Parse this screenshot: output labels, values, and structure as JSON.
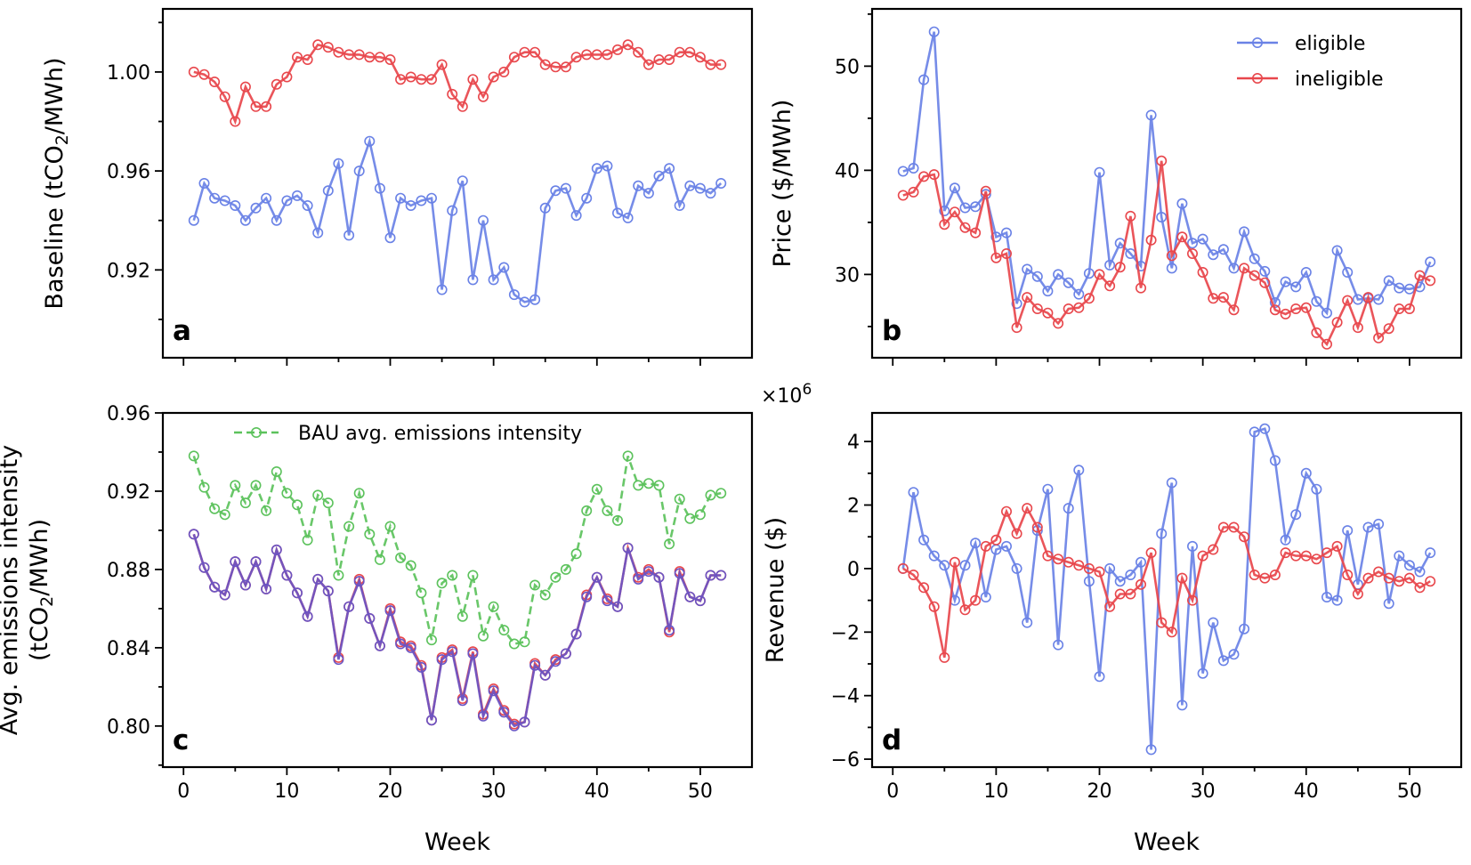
{
  "series_legend": [
    {
      "label": "eligible",
      "color": "#6a82e6"
    },
    {
      "label": "ineligible",
      "color": "#e8474c"
    }
  ],
  "xlabel": "Week",
  "chart_data": [
    {
      "id": "a",
      "letter": "a",
      "type": "line",
      "ylabel_lines": [
        [
          "Baseline (tCO",
          "2",
          "/MWh)"
        ]
      ],
      "xlim": [
        -2,
        55
      ],
      "ylim": [
        0.8845,
        1.0255
      ],
      "yticks": [
        0.92,
        0.96,
        1.0
      ],
      "ytick_labels": [
        "0.92",
        "0.96",
        "1.00"
      ],
      "yminor": [
        0.9,
        0.94,
        0.98,
        1.02
      ],
      "xticks": [
        0,
        10,
        20,
        30,
        40,
        50
      ],
      "xminor": [
        5,
        15,
        25,
        35,
        45
      ],
      "show_xtick_labels": false,
      "x": [
        1,
        2,
        3,
        4,
        5,
        6,
        7,
        8,
        9,
        10,
        11,
        12,
        13,
        14,
        15,
        16,
        17,
        18,
        19,
        20,
        21,
        22,
        23,
        24,
        25,
        26,
        27,
        28,
        29,
        30,
        31,
        32,
        33,
        34,
        35,
        36,
        37,
        38,
        39,
        40,
        41,
        42,
        43,
        44,
        45,
        46,
        47,
        48,
        49,
        50,
        51,
        52
      ],
      "series": [
        {
          "color": "#6a82e6",
          "dashed": false,
          "values": [
            0.94,
            0.955,
            0.949,
            0.948,
            0.946,
            0.94,
            0.945,
            0.949,
            0.94,
            0.948,
            0.95,
            0.946,
            0.935,
            0.952,
            0.963,
            0.934,
            0.96,
            0.972,
            0.953,
            0.933,
            0.949,
            0.946,
            0.948,
            0.949,
            0.912,
            0.944,
            0.956,
            0.916,
            0.94,
            0.916,
            0.921,
            0.91,
            0.907,
            0.908,
            0.945,
            0.952,
            0.953,
            0.942,
            0.949,
            0.961,
            0.962,
            0.943,
            0.941,
            0.954,
            0.951,
            0.958,
            0.961,
            0.946,
            0.954,
            0.953,
            0.951,
            0.955
          ]
        },
        {
          "color": "#e8474c",
          "dashed": false,
          "values": [
            1.0,
            0.999,
            0.996,
            0.99,
            0.98,
            0.994,
            0.986,
            0.986,
            0.995,
            0.998,
            1.006,
            1.005,
            1.011,
            1.01,
            1.008,
            1.007,
            1.007,
            1.006,
            1.006,
            1.005,
            0.997,
            0.998,
            0.997,
            0.997,
            1.003,
            0.991,
            0.986,
            0.997,
            0.99,
            0.998,
            1.0,
            1.006,
            1.008,
            1.008,
            1.003,
            1.002,
            1.002,
            1.006,
            1.007,
            1.007,
            1.007,
            1.009,
            1.011,
            1.008,
            1.003,
            1.005,
            1.005,
            1.008,
            1.008,
            1.006,
            1.003,
            1.003
          ]
        }
      ]
    },
    {
      "id": "b",
      "letter": "b",
      "type": "line",
      "ylabel_lines": [
        [
          "Price ($/MWh)"
        ]
      ],
      "xlim": [
        -2,
        55
      ],
      "ylim": [
        22.0,
        55.5
      ],
      "yticks": [
        30,
        40,
        50
      ],
      "ytick_labels": [
        "30",
        "40",
        "50"
      ],
      "yminor": [
        25,
        35,
        45,
        55
      ],
      "xticks": [
        0,
        10,
        20,
        30,
        40,
        50
      ],
      "xminor": [
        5,
        15,
        25,
        35,
        45
      ],
      "show_xtick_labels": false,
      "legend": true,
      "x": [
        1,
        2,
        3,
        4,
        5,
        6,
        7,
        8,
        9,
        10,
        11,
        12,
        13,
        14,
        15,
        16,
        17,
        18,
        19,
        20,
        21,
        22,
        23,
        24,
        25,
        26,
        27,
        28,
        29,
        30,
        31,
        32,
        33,
        34,
        35,
        36,
        37,
        38,
        39,
        40,
        41,
        42,
        43,
        44,
        45,
        46,
        47,
        48,
        49,
        50,
        51,
        52
      ],
      "series": [
        {
          "color": "#6a82e6",
          "dashed": false,
          "values": [
            39.9,
            40.2,
            48.7,
            53.3,
            36.1,
            38.3,
            36.4,
            36.5,
            37.7,
            33.6,
            34.0,
            27.2,
            30.5,
            29.8,
            28.4,
            30.0,
            29.2,
            28.1,
            30.1,
            39.8,
            30.9,
            33.0,
            32.0,
            30.8,
            45.3,
            35.5,
            30.6,
            36.8,
            33.0,
            33.4,
            31.9,
            32.4,
            30.6,
            34.1,
            31.5,
            30.3,
            27.3,
            29.3,
            28.8,
            30.2,
            27.4,
            26.3,
            32.3,
            30.2,
            27.6,
            27.7,
            27.6,
            29.4,
            28.7,
            28.6,
            28.8,
            31.2
          ]
        },
        {
          "color": "#e8474c",
          "dashed": false,
          "values": [
            37.6,
            37.9,
            39.4,
            39.6,
            34.8,
            36.0,
            34.5,
            34.0,
            38.0,
            31.6,
            32.0,
            24.9,
            27.8,
            26.7,
            26.3,
            25.3,
            26.7,
            26.8,
            27.7,
            30.0,
            28.9,
            30.7,
            35.6,
            28.7,
            33.3,
            40.9,
            31.8,
            33.6,
            32.0,
            30.2,
            27.7,
            27.8,
            26.6,
            30.6,
            29.9,
            29.2,
            26.6,
            26.2,
            26.7,
            26.8,
            24.4,
            23.3,
            25.4,
            27.5,
            24.9,
            27.8,
            23.9,
            24.8,
            26.7,
            26.7,
            29.9,
            29.4
          ]
        }
      ]
    },
    {
      "id": "c",
      "letter": "c",
      "type": "line",
      "ylabel_lines": [
        [
          "Avg. emissions intensity"
        ],
        [
          "(tCO",
          "2",
          "/MWh)"
        ]
      ],
      "xlim": [
        -2,
        55
      ],
      "ylim": [
        0.779,
        0.96
      ],
      "yticks": [
        0.8,
        0.84,
        0.88,
        0.92,
        0.96
      ],
      "ytick_labels": [
        "0.80",
        "0.84",
        "0.88",
        "0.92",
        "0.96"
      ],
      "yminor": [
        0.78,
        0.82,
        0.86,
        0.9,
        0.94
      ],
      "xticks": [
        0,
        10,
        20,
        30,
        40,
        50
      ],
      "xminor": [
        5,
        15,
        25,
        35,
        45
      ],
      "show_xtick_labels": true,
      "xtick_labels": [
        "0",
        "10",
        "20",
        "30",
        "40",
        "50"
      ],
      "x": [
        1,
        2,
        3,
        4,
        5,
        6,
        7,
        8,
        9,
        10,
        11,
        12,
        13,
        14,
        15,
        16,
        17,
        18,
        19,
        20,
        21,
        22,
        23,
        24,
        25,
        26,
        27,
        28,
        29,
        30,
        31,
        32,
        33,
        34,
        35,
        36,
        37,
        38,
        39,
        40,
        41,
        42,
        43,
        44,
        45,
        46,
        47,
        48,
        49,
        50,
        51,
        52
      ],
      "legend_label": "BAU avg. emissions intensity",
      "series": [
        {
          "color": "#5cc25c",
          "dashed": true,
          "values": [
            0.938,
            0.922,
            0.911,
            0.908,
            0.923,
            0.914,
            0.923,
            0.91,
            0.93,
            0.919,
            0.913,
            0.895,
            0.918,
            0.914,
            0.877,
            0.902,
            0.919,
            0.898,
            0.885,
            0.902,
            0.886,
            0.882,
            0.868,
            0.844,
            0.873,
            0.877,
            0.856,
            0.877,
            0.846,
            0.861,
            0.849,
            0.842,
            0.843,
            0.872,
            0.867,
            0.876,
            0.88,
            0.888,
            0.91,
            0.921,
            0.91,
            0.905,
            0.938,
            0.923,
            0.924,
            0.923,
            0.893,
            0.916,
            0.906,
            0.908,
            0.918,
            0.919
          ]
        },
        {
          "color": "#e8474c",
          "dashed": false,
          "values": [
            0.898,
            0.881,
            0.871,
            0.867,
            0.884,
            0.872,
            0.884,
            0.87,
            0.89,
            0.877,
            0.868,
            0.856,
            0.875,
            0.869,
            0.835,
            0.861,
            0.875,
            0.855,
            0.841,
            0.86,
            0.843,
            0.841,
            0.831,
            0.803,
            0.835,
            0.839,
            0.814,
            0.838,
            0.806,
            0.819,
            0.808,
            0.801,
            0.802,
            0.832,
            0.826,
            0.834,
            0.837,
            0.847,
            0.867,
            0.876,
            0.865,
            0.861,
            0.891,
            0.876,
            0.88,
            0.876,
            0.848,
            0.879,
            0.866,
            0.864,
            0.877,
            0.877
          ]
        },
        {
          "color": "#6a55c4",
          "dashed": false,
          "values": [
            0.898,
            0.881,
            0.871,
            0.867,
            0.884,
            0.872,
            0.884,
            0.87,
            0.89,
            0.877,
            0.868,
            0.856,
            0.875,
            0.869,
            0.834,
            0.861,
            0.874,
            0.855,
            0.841,
            0.859,
            0.842,
            0.84,
            0.83,
            0.803,
            0.834,
            0.838,
            0.813,
            0.837,
            0.805,
            0.818,
            0.807,
            0.8,
            0.802,
            0.831,
            0.826,
            0.833,
            0.837,
            0.847,
            0.866,
            0.876,
            0.864,
            0.861,
            0.891,
            0.875,
            0.879,
            0.876,
            0.849,
            0.878,
            0.866,
            0.864,
            0.877,
            0.877
          ]
        }
      ]
    },
    {
      "id": "d",
      "letter": "d",
      "type": "line",
      "ylabel_lines": [
        [
          "Revenue ($)"
        ]
      ],
      "scale_label": "×10",
      "scale_exp": "6",
      "xlim": [
        -2,
        55
      ],
      "ylim": [
        -6.25,
        4.9
      ],
      "yticks": [
        -6,
        -4,
        -2,
        0,
        2,
        4
      ],
      "ytick_labels": [
        "−6",
        "−4",
        "−2",
        "0",
        "2",
        "4"
      ],
      "yminor": [
        -5,
        -3,
        -1,
        1,
        3
      ],
      "xticks": [
        0,
        10,
        20,
        30,
        40,
        50
      ],
      "xminor": [
        5,
        15,
        25,
        35,
        45
      ],
      "show_xtick_labels": true,
      "xtick_labels": [
        "0",
        "10",
        "20",
        "30",
        "40",
        "50"
      ],
      "x": [
        1,
        2,
        3,
        4,
        5,
        6,
        7,
        8,
        9,
        10,
        11,
        12,
        13,
        14,
        15,
        16,
        17,
        18,
        19,
        20,
        21,
        22,
        23,
        24,
        25,
        26,
        27,
        28,
        29,
        30,
        31,
        32,
        33,
        34,
        35,
        36,
        37,
        38,
        39,
        40,
        41,
        42,
        43,
        44,
        45,
        46,
        47,
        48,
        49,
        50,
        51,
        52
      ],
      "series": [
        {
          "color": "#6a82e6",
          "dashed": false,
          "values": [
            0.0,
            2.4,
            0.9,
            0.4,
            0.1,
            -1.0,
            0.1,
            0.8,
            -0.9,
            0.6,
            0.7,
            0.0,
            -1.7,
            1.2,
            2.5,
            -2.4,
            1.9,
            3.1,
            -0.4,
            -3.4,
            0.0,
            -0.4,
            -0.2,
            0.2,
            -5.7,
            1.1,
            2.7,
            -4.3,
            0.7,
            -3.3,
            -1.7,
            -2.9,
            -2.7,
            -1.9,
            4.3,
            4.4,
            3.4,
            0.9,
            1.7,
            3.0,
            2.5,
            -0.9,
            -1.0,
            1.2,
            -0.5,
            1.3,
            1.4,
            -1.1,
            0.4,
            0.1,
            -0.1,
            0.5
          ]
        },
        {
          "color": "#e8474c",
          "dashed": false,
          "values": [
            0.0,
            -0.2,
            -0.6,
            -1.2,
            -2.8,
            0.2,
            -1.3,
            -1.0,
            0.7,
            0.9,
            1.8,
            1.1,
            1.9,
            1.3,
            0.4,
            0.3,
            0.2,
            0.1,
            0.0,
            -0.1,
            -1.2,
            -0.8,
            -0.8,
            -0.5,
            0.5,
            -1.7,
            -2.0,
            -0.3,
            -1.0,
            0.4,
            0.6,
            1.3,
            1.3,
            1.0,
            -0.2,
            -0.3,
            -0.2,
            0.5,
            0.4,
            0.4,
            0.3,
            0.5,
            0.7,
            -0.2,
            -0.8,
            -0.3,
            -0.1,
            -0.3,
            -0.4,
            -0.3,
            -0.6,
            -0.4
          ]
        }
      ]
    }
  ]
}
